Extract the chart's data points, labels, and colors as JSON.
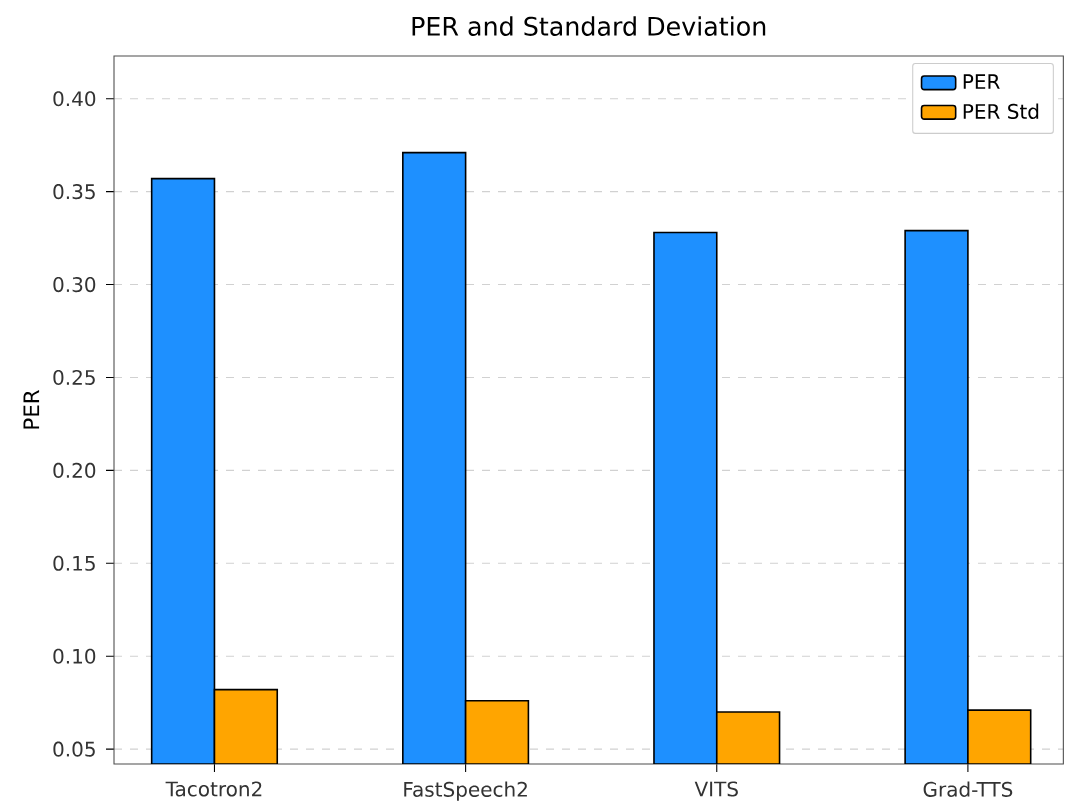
{
  "chart_data": {
    "type": "bar",
    "title": "PER and Standard Deviation",
    "ylabel": "PER",
    "categories": [
      "Tacotron2",
      "FastSpeech2",
      "VITS",
      "Grad-TTS"
    ],
    "series": [
      {
        "name": "PER",
        "color": "#1e90ff",
        "values": [
          0.357,
          0.371,
          0.328,
          0.329
        ]
      },
      {
        "name": "PER Std",
        "color": "#ffa500",
        "values": [
          0.082,
          0.076,
          0.07,
          0.071
        ]
      }
    ],
    "ylim": [
      0.042,
      0.423
    ],
    "yticks": [
      0.05,
      {
        "value": 0.1,
        "label": "0.10"
      },
      0.15,
      {
        "value": 0.2,
        "label": "0.20"
      },
      0.25,
      {
        "value": 0.3,
        "label": "0.30"
      },
      0.35,
      {
        "value": 0.4,
        "label": "0.40"
      }
    ],
    "grid": "y",
    "legend": "top right"
  }
}
